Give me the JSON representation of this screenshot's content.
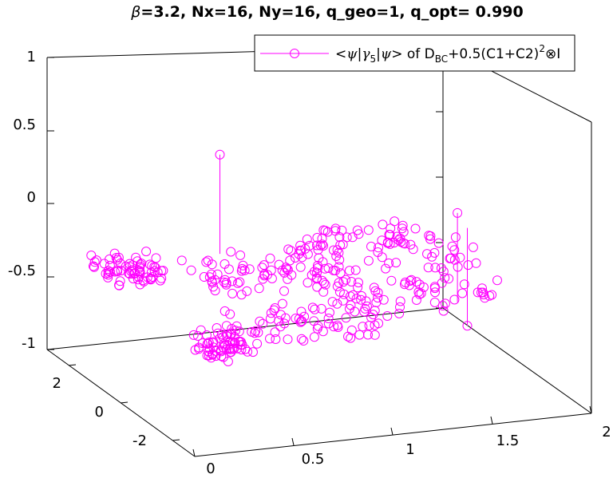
{
  "chart_data": {
    "type": "scatter",
    "title": {
      "beta_symbol": "β",
      "rest": "=3.2, Nx=16, Ny=16, q_geo=1, q_opt= 0.990"
    },
    "legend": {
      "position": "top-right",
      "entry": {
        "prefix": "<",
        "psi1": "ψ",
        "bar1": "|",
        "gamma": "γ",
        "gamma_sub": "5",
        "bar2": "|",
        "psi2": "ψ",
        "mid": "> of D",
        "d_sub": "BC",
        "after": "+0.5(C1+C2)",
        "sup": "2",
        "otimes": "⊗",
        "end": "I"
      }
    },
    "axes": {
      "x_ticks": [
        "0",
        "0.5",
        "1",
        "1.5",
        "2"
      ],
      "y_ticks": [
        "2",
        "0",
        "-2"
      ],
      "z_ticks": [
        "1",
        "0.5",
        "0",
        "-0.5",
        "-1"
      ],
      "xlim": [
        0,
        2
      ],
      "ylim": [
        -3,
        3
      ],
      "zlim": [
        -1,
        1
      ],
      "grid": false
    },
    "series_style": {
      "marker": "open-circle",
      "color": "#ff00ff"
    },
    "stems": [
      {
        "x": 0.5,
        "y": 0,
        "z": 0.63,
        "base": -0.05
      },
      {
        "x": 1.75,
        "y": 0,
        "z": -0.72,
        "base": -0.05
      },
      {
        "x": 1.7,
        "y": 0,
        "z": 0.06,
        "base": -0.55
      }
    ],
    "point_clusters": [
      {
        "x": 0.15,
        "y": 0.8,
        "z": -0.2,
        "count": 70,
        "jitter": [
          0.15,
          0.6,
          0.05
        ]
      },
      {
        "x": 0.45,
        "y": -0.5,
        "z": -0.6,
        "count": 60,
        "jitter": [
          0.12,
          0.6,
          0.05
        ]
      },
      {
        "x": 0.8,
        "y": 0.4,
        "z": -0.25,
        "count": 80,
        "jitter": [
          0.35,
          0.8,
          0.08
        ]
      },
      {
        "x": 0.85,
        "y": -0.3,
        "z": -0.55,
        "count": 70,
        "jitter": [
          0.35,
          0.8,
          0.07
        ]
      },
      {
        "x": 1.3,
        "y": 0.4,
        "z": -0.15,
        "count": 70,
        "jitter": [
          0.3,
          0.8,
          0.1
        ]
      },
      {
        "x": 1.35,
        "y": -0.2,
        "z": -0.4,
        "count": 60,
        "jitter": [
          0.3,
          0.8,
          0.08
        ]
      },
      {
        "x": 1.7,
        "y": 0.2,
        "z": -0.25,
        "count": 15,
        "jitter": [
          0.12,
          0.5,
          0.08
        ]
      },
      {
        "x": 1.8,
        "y": -0.3,
        "z": -0.45,
        "count": 10,
        "jitter": [
          0.12,
          0.5,
          0.05
        ]
      }
    ]
  }
}
